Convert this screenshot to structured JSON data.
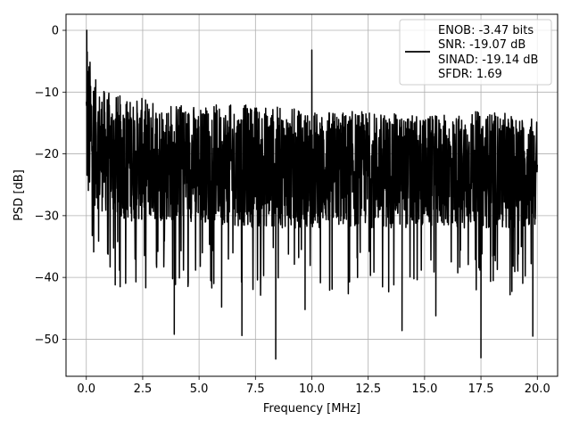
{
  "chart_data": {
    "type": "line",
    "title": "",
    "xlabel": "Frequency [MHz]",
    "ylabel": "PSD [dB]",
    "xlim": [
      -0.9,
      20.9
    ],
    "ylim": [
      -56.0,
      2.6
    ],
    "x_ticks": [
      0.0,
      2.5,
      5.0,
      7.5,
      10.0,
      12.5,
      15.0,
      17.5,
      20.0
    ],
    "x_tick_labels": [
      "0.0",
      "2.5",
      "5.0",
      "7.5",
      "10.0",
      "12.5",
      "15.0",
      "17.5",
      "20.0"
    ],
    "y_ticks": [
      0,
      -10,
      -20,
      -30,
      -40,
      -50
    ],
    "y_tick_labels": [
      "0",
      "−10",
      "−20",
      "−30",
      "−40",
      "−50"
    ],
    "grid": true,
    "legend_position": "top-right",
    "legend_lines": [
      "ENOB: -3.47 bits",
      "SNR: -19.07 dB",
      "SINAD: -19.14 dB",
      "SFDR: 1.69"
    ],
    "line_color": "#000000",
    "series": [
      {
        "x_range": [
          0.0,
          20.0
        ],
        "envelope_x": [
          0.0,
          0.05,
          0.2,
          0.5,
          1.0,
          2.0,
          2.5,
          5.0,
          7.5,
          10.0,
          12.5,
          15.0,
          17.5,
          20.0
        ],
        "envelope_upper": [
          -4,
          -3,
          -5,
          -9,
          -10,
          -11,
          -11,
          -12,
          -12,
          -13,
          -13,
          -14,
          -13,
          -14
        ],
        "envelope_lower": [
          -26,
          -29,
          -28,
          -29,
          -30,
          -31,
          -31,
          -31,
          -32,
          -32,
          -32,
          -32,
          -32,
          -32
        ],
        "peaks": [
          {
            "x": 0.02,
            "y": 0.0
          },
          {
            "x": 0.04,
            "y": -3.5
          },
          {
            "x": 10.0,
            "y": -3.2
          }
        ],
        "dips": [
          {
            "x": 1.5,
            "y": -41.5
          },
          {
            "x": 3.9,
            "y": -49.2
          },
          {
            "x": 6.0,
            "y": -44.8
          },
          {
            "x": 6.9,
            "y": -49.4
          },
          {
            "x": 8.4,
            "y": -53.2
          },
          {
            "x": 9.7,
            "y": -45.2
          },
          {
            "x": 14.0,
            "y": -48.6
          },
          {
            "x": 15.5,
            "y": -46.2
          },
          {
            "x": 17.5,
            "y": -53.0
          },
          {
            "x": 19.8,
            "y": -49.5
          }
        ]
      }
    ]
  }
}
